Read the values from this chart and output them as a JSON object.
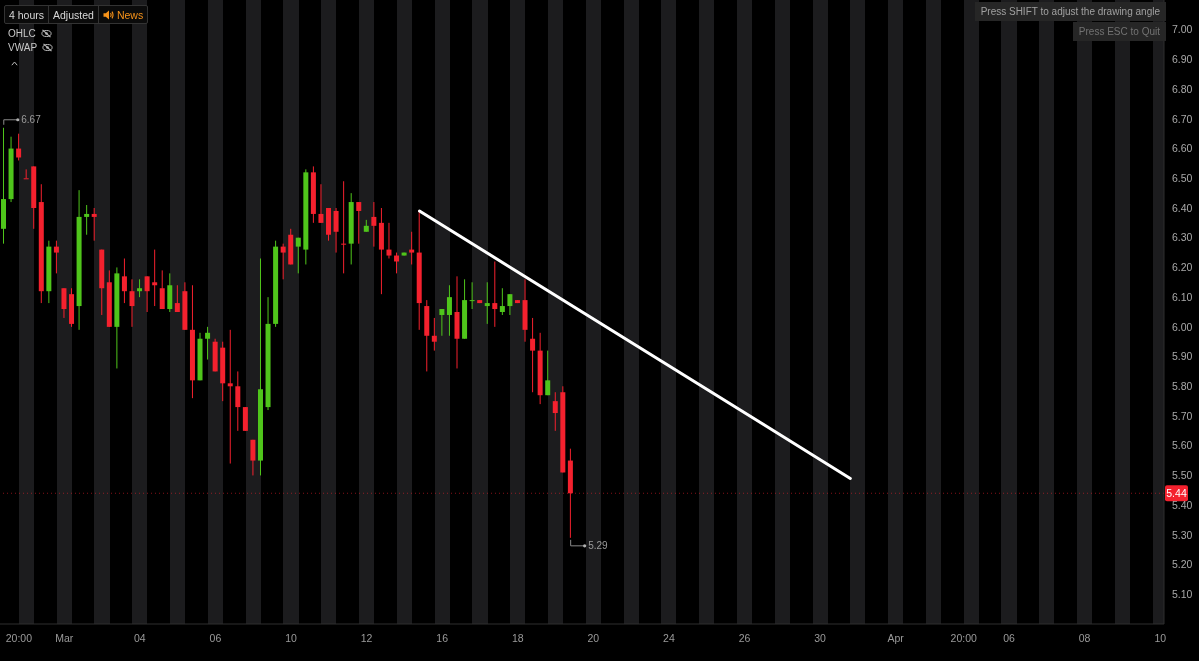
{
  "chart_data": {
    "type": "candlestick",
    "categories": [
      null,
      null,
      "20:00",
      null,
      null,
      null,
      null,
      null,
      "Mar",
      null,
      null,
      null,
      null,
      null,
      null,
      null,
      null,
      null,
      "04",
      null,
      null,
      null,
      null,
      null,
      null,
      null,
      null,
      null,
      "06",
      null,
      null,
      null,
      null,
      null,
      null,
      null,
      null,
      null,
      "10",
      null,
      null,
      null,
      null,
      null,
      null,
      null,
      null,
      null,
      "12",
      null,
      null,
      null,
      null,
      null,
      null,
      null,
      null,
      null,
      "16",
      null,
      null,
      null,
      null,
      null,
      null,
      null,
      null,
      null,
      "18",
      null,
      null,
      null,
      null,
      null,
      null,
      null,
      null,
      null,
      "20",
      null,
      null,
      null,
      null,
      null,
      null,
      null,
      null,
      null,
      "24",
      null,
      null,
      null,
      null,
      null,
      null,
      null,
      null,
      null,
      "26",
      null,
      null,
      null,
      null,
      null,
      null,
      null,
      null,
      null,
      "30",
      null,
      null,
      null,
      null,
      null,
      null,
      null,
      null,
      null,
      "Apr",
      null,
      null,
      null,
      null,
      null,
      null,
      null,
      null,
      "20:00",
      null,
      null,
      null,
      null,
      null,
      "06",
      null,
      null,
      null,
      null,
      null,
      null,
      null,
      null,
      null,
      "08",
      null,
      null,
      null,
      null,
      null,
      null,
      null,
      null,
      null,
      "10"
    ],
    "ohlc": [
      [
        6.33,
        6.67,
        6.28,
        6.43
      ],
      [
        6.43,
        6.64,
        6.42,
        6.6
      ],
      [
        6.6,
        6.65,
        6.56,
        6.57
      ],
      [
        6.5,
        6.53,
        6.5,
        6.5
      ],
      [
        6.54,
        6.54,
        6.33,
        6.4
      ],
      [
        6.42,
        6.48,
        6.08,
        6.12
      ],
      [
        6.12,
        6.29,
        6.08,
        6.27
      ],
      [
        6.27,
        6.29,
        6.18,
        6.25
      ],
      [
        6.13,
        6.13,
        6.03,
        6.06
      ],
      [
        6.11,
        6.13,
        6.0,
        6.01
      ],
      [
        6.07,
        6.46,
        5.99,
        6.37
      ],
      [
        6.37,
        6.41,
        6.31,
        6.38
      ],
      [
        6.38,
        6.4,
        6.29,
        6.37
      ],
      [
        6.26,
        6.26,
        6.04,
        6.13
      ],
      [
        6.15,
        6.19,
        6.0,
        6.0
      ],
      [
        6.0,
        6.2,
        5.86,
        6.18
      ],
      [
        6.17,
        6.23,
        6.08,
        6.12
      ],
      [
        6.12,
        6.16,
        6.0,
        6.07
      ],
      [
        6.12,
        6.16,
        6.1,
        6.13
      ],
      [
        6.17,
        6.17,
        6.05,
        6.12
      ],
      [
        6.15,
        6.26,
        6.07,
        6.14
      ],
      [
        6.13,
        6.19,
        6.06,
        6.06
      ],
      [
        6.06,
        6.18,
        6.05,
        6.14
      ],
      [
        6.08,
        6.14,
        6.05,
        6.05
      ],
      [
        6.12,
        6.15,
        5.99,
        5.99
      ],
      [
        5.99,
        6.14,
        5.76,
        5.82
      ],
      [
        5.82,
        5.98,
        5.82,
        5.96
      ],
      [
        5.96,
        6.0,
        5.89,
        5.98
      ],
      [
        5.95,
        5.96,
        5.85,
        5.85
      ],
      [
        5.93,
        5.95,
        5.75,
        5.81
      ],
      [
        5.81,
        5.99,
        5.54,
        5.8
      ],
      [
        5.8,
        5.85,
        5.65,
        5.73
      ],
      [
        5.73,
        5.73,
        5.65,
        5.65
      ],
      [
        5.62,
        5.62,
        5.5,
        5.55
      ],
      [
        5.55,
        6.23,
        5.5,
        5.79
      ],
      [
        5.73,
        6.1,
        5.72,
        6.01
      ],
      [
        6.01,
        6.29,
        6.0,
        6.27
      ],
      [
        6.27,
        6.28,
        6.16,
        6.25
      ],
      [
        6.31,
        6.33,
        6.21,
        6.21
      ],
      [
        6.27,
        6.3,
        6.18,
        6.3
      ],
      [
        6.26,
        6.53,
        6.21,
        6.52
      ],
      [
        6.52,
        6.54,
        6.35,
        6.38
      ],
      [
        6.38,
        6.48,
        6.35,
        6.35
      ],
      [
        6.4,
        6.4,
        6.29,
        6.31
      ],
      [
        6.39,
        6.4,
        6.25,
        6.32
      ],
      [
        6.28,
        6.49,
        6.18,
        6.28
      ],
      [
        6.28,
        6.45,
        6.21,
        6.42
      ],
      [
        6.42,
        6.42,
        6.28,
        6.39
      ],
      [
        6.32,
        6.36,
        6.32,
        6.34
      ],
      [
        6.37,
        6.42,
        6.27,
        6.34
      ],
      [
        6.35,
        6.4,
        6.11,
        6.26
      ],
      [
        6.26,
        6.35,
        6.23,
        6.24
      ],
      [
        6.24,
        6.25,
        6.18,
        6.22
      ],
      [
        6.24,
        6.25,
        6.24,
        6.25
      ],
      [
        6.26,
        6.32,
        6.21,
        6.25
      ],
      [
        6.25,
        6.39,
        5.99,
        6.08
      ],
      [
        6.07,
        6.09,
        5.85,
        5.97
      ],
      [
        5.97,
        6.03,
        5.92,
        5.95
      ],
      [
        6.04,
        6.06,
        5.97,
        6.06
      ],
      [
        6.04,
        6.14,
        5.97,
        6.1
      ],
      [
        6.05,
        6.17,
        5.86,
        5.96
      ],
      [
        5.96,
        6.16,
        5.96,
        6.09
      ],
      [
        6.09,
        6.15,
        6.06,
        6.09
      ],
      [
        6.09,
        6.09,
        6.08,
        6.08
      ],
      [
        6.07,
        6.15,
        6.01,
        6.08
      ],
      [
        6.08,
        6.22,
        6.0,
        6.06
      ],
      [
        6.05,
        6.13,
        6.04,
        6.07
      ],
      [
        6.07,
        6.11,
        6.04,
        6.11
      ],
      [
        6.09,
        6.09,
        6.08,
        6.08
      ],
      [
        6.09,
        6.16,
        5.95,
        5.99
      ],
      [
        5.96,
        6.03,
        5.78,
        5.92
      ],
      [
        5.92,
        5.98,
        5.74,
        5.77
      ],
      [
        5.77,
        5.92,
        5.77,
        5.82
      ],
      [
        5.75,
        5.78,
        5.65,
        5.71
      ],
      [
        5.78,
        5.8,
        5.51,
        5.51
      ],
      [
        5.55,
        5.59,
        5.29,
        5.44
      ],
      null,
      null,
      null,
      null,
      null,
      null,
      null,
      null,
      null,
      null,
      null,
      null,
      null,
      null,
      null,
      null,
      null,
      null,
      null,
      null,
      null,
      null,
      null,
      null,
      null,
      null,
      null,
      null,
      null,
      null,
      null,
      null,
      null,
      null,
      null,
      null,
      null,
      null,
      null,
      null,
      null,
      null,
      null,
      null,
      null,
      null,
      null,
      null,
      null,
      null,
      null,
      null,
      null,
      null,
      null,
      null,
      null,
      null,
      null,
      null,
      null,
      null,
      null,
      null,
      null,
      null,
      null,
      null,
      null,
      null,
      null,
      null,
      null,
      null,
      null,
      null,
      null,
      null
    ],
    "colors": [
      "#4fc51b",
      "#4fc51b",
      "#f4212e",
      "#f4212e",
      "#f4212e",
      "#f4212e",
      "#4fc51b",
      "#f4212e",
      "#f4212e",
      "#f4212e",
      "#4fc51b",
      "#4fc51b",
      "#f4212e",
      "#f4212e",
      "#f4212e",
      "#4fc51b",
      "#f4212e",
      "#f4212e",
      "#4fc51b",
      "#f4212e",
      "#f4212e",
      "#f4212e",
      "#4fc51b",
      "#f4212e",
      "#f4212e",
      "#f4212e",
      "#4fc51b",
      "#4fc51b",
      "#f4212e",
      "#f4212e",
      "#f4212e",
      "#f4212e",
      "#f4212e",
      "#f4212e",
      "#4fc51b",
      "#4fc51b",
      "#4fc51b",
      "#f4212e",
      "#f4212e",
      "#4fc51b",
      "#4fc51b",
      "#f4212e",
      "#f4212e",
      "#f4212e",
      "#f4212e",
      "#f4212e",
      "#4fc51b",
      "#f4212e",
      "#4fc51b",
      "#f4212e",
      "#f4212e",
      "#f4212e",
      "#f4212e",
      "#4fc51b",
      "#f4212e",
      "#f4212e",
      "#f4212e",
      "#f4212e",
      "#4fc51b",
      "#4fc51b",
      "#f4212e",
      "#4fc51b",
      "#4fc51b",
      "#f4212e",
      "#4fc51b",
      "#f4212e",
      "#4fc51b",
      "#4fc51b",
      "#f4212e",
      "#f4212e",
      "#f4212e",
      "#f4212e",
      "#4fc51b",
      "#f4212e",
      "#f4212e",
      "#f4212e",
      null,
      null,
      null,
      null,
      null,
      null,
      null,
      null,
      null,
      null,
      null,
      null,
      null,
      null,
      null,
      null,
      null,
      null,
      null,
      null,
      null,
      null,
      null,
      null,
      null,
      null,
      null,
      null,
      null,
      null,
      null,
      null,
      null,
      null,
      null,
      null,
      null,
      null,
      null,
      null,
      null,
      null,
      null,
      null,
      null,
      null,
      null,
      null,
      null,
      null,
      null,
      null,
      null,
      null,
      null,
      null,
      null,
      null,
      null,
      null,
      null,
      null,
      null,
      null,
      null,
      null,
      null,
      null,
      null,
      null,
      null,
      null,
      null,
      null,
      null,
      null,
      null,
      null
    ],
    "series": [
      {
        "type": "line",
        "color": "#ffffff",
        "values": [
          null,
          null,
          null,
          null,
          null,
          null,
          null,
          null,
          null,
          null,
          null,
          null,
          null,
          null,
          null,
          null,
          null,
          null,
          null,
          null,
          null,
          null,
          null,
          null,
          null,
          null,
          null,
          null,
          null,
          null,
          null,
          null,
          null,
          null,
          null,
          null,
          null,
          null,
          null,
          null,
          null,
          null,
          null,
          null,
          null,
          null,
          null,
          null,
          null,
          null,
          null,
          null,
          null,
          null,
          null,
          6.39,
          null,
          null,
          null,
          null,
          null,
          null,
          null,
          null,
          null,
          null,
          null,
          null,
          null,
          null,
          null,
          null,
          null,
          null,
          null,
          null,
          null,
          null,
          null,
          null,
          null,
          null,
          null,
          null,
          null,
          null,
          null,
          null,
          null,
          null,
          null,
          null,
          null,
          null,
          null,
          null,
          null,
          null,
          null,
          null,
          null,
          null,
          null,
          null,
          null,
          null,
          null,
          null,
          null,
          null,
          null,
          null,
          5.49,
          null,
          null,
          null,
          null,
          null,
          null,
          null,
          null,
          null,
          null,
          null,
          null,
          null,
          null,
          null,
          null,
          null,
          null,
          null,
          null,
          null,
          null,
          null,
          null,
          null,
          null,
          null,
          null,
          null,
          null,
          null,
          null,
          null,
          null,
          null,
          null,
          null,
          null,
          null,
          null,
          null
        ]
      }
    ],
    "ylim": [
      5.0,
      7.1
    ],
    "yticks": [
      {
        "value": 5.1,
        "label": "5.10"
      },
      {
        "value": 5.2,
        "label": "5.20"
      },
      {
        "value": 5.3,
        "label": "5.30"
      },
      {
        "value": 5.4,
        "label": "5.40"
      },
      {
        "value": 5.5,
        "label": "5.50"
      },
      {
        "value": 5.6,
        "label": "5.60"
      },
      {
        "value": 5.7,
        "label": "5.70"
      },
      {
        "value": 5.8,
        "label": "5.80"
      },
      {
        "value": 5.9,
        "label": "5.90"
      },
      {
        "value": 6.0,
        "label": "6.00"
      },
      {
        "value": 6.1,
        "label": "6.10"
      },
      {
        "value": 6.2,
        "label": "6.20"
      },
      {
        "value": 6.3,
        "label": "6.30"
      },
      {
        "value": 6.4,
        "label": "6.40"
      },
      {
        "value": 6.5,
        "label": "6.50"
      },
      {
        "value": 6.6,
        "label": "6.60"
      },
      {
        "value": 6.7,
        "label": "6.70"
      },
      {
        "value": 6.8,
        "label": "6.80"
      },
      {
        "value": 6.9,
        "label": "6.90"
      },
      {
        "value": 7.0,
        "label": "7.00"
      }
    ],
    "ref_lines": [
      {
        "axis": "y",
        "value": 5.44,
        "label": "5.44",
        "color": "#f4212e",
        "line_style": "dotted"
      }
    ],
    "annotations": [
      "6.67",
      "5.29",
      "4 hours",
      "Adjusted",
      "News",
      "OHLC",
      "VWAP",
      "Press SHIFT to adjust the drawing angle",
      "Press ESC to Quit"
    ]
  }
}
